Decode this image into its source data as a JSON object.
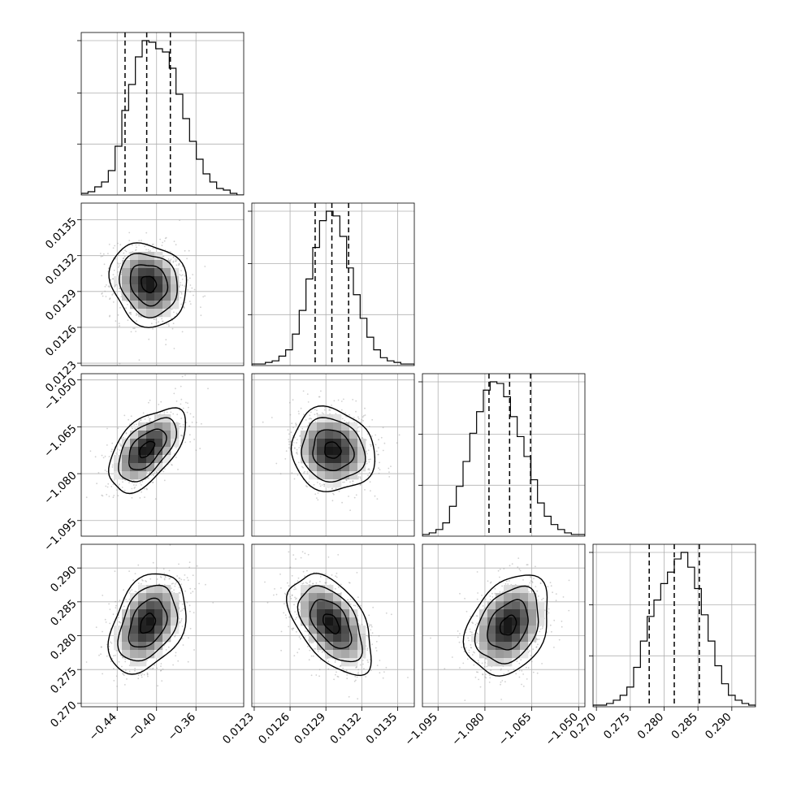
{
  "chart_data": {
    "type": "corner",
    "grid": true,
    "parameters": [
      {
        "ticks": [
          -0.44,
          -0.4,
          -0.36
        ],
        "tick_labels": [
          "−0.44",
          "−0.40",
          "−0.36"
        ],
        "range": [
          -0.4765,
          -0.3115
        ],
        "quantiles": [
          -0.432,
          -0.41,
          -0.386
        ],
        "hist": [
          1,
          2,
          5,
          8,
          15,
          30,
          52,
          68,
          85,
          95,
          94,
          90,
          88,
          78,
          62,
          47,
          33,
          22,
          13,
          8,
          4,
          3,
          1,
          0
        ]
      },
      {
        "ticks": [
          0.0123,
          0.0126,
          0.0129,
          0.0132,
          0.0135
        ],
        "tick_labels": [
          "0.0123",
          "0.0126",
          "0.0129",
          "0.0132",
          "0.0135"
        ],
        "range": [
          0.01228,
          0.01364
        ],
        "quantiles": [
          0.01281,
          0.01295,
          0.01309
        ],
        "hist": [
          1,
          1,
          2,
          3,
          6,
          10,
          20,
          35,
          55,
          75,
          92,
          98,
          95,
          82,
          62,
          45,
          30,
          18,
          10,
          5,
          3,
          2,
          1,
          1
        ]
      },
      {
        "ticks": [
          -1.095,
          -1.08,
          -1.065,
          -1.05
        ],
        "tick_labels": [
          "−1.095",
          "−1.080",
          "−1.065",
          "−1.050"
        ],
        "range": [
          -1.1,
          -1.048
        ],
        "quantiles": [
          -1.0787,
          -1.0721,
          -1.0654
        ],
        "hist": [
          1,
          2,
          4,
          8,
          18,
          30,
          45,
          62,
          75,
          88,
          93,
          92,
          84,
          72,
          60,
          48,
          34,
          20,
          12,
          7,
          4,
          2,
          1,
          1
        ]
      },
      {
        "ticks": [
          0.27,
          0.275,
          0.28,
          0.285,
          0.29
        ],
        "tick_labels": [
          "0.270",
          "0.275",
          "0.280",
          "0.285",
          "0.290"
        ],
        "range": [
          0.2695,
          0.2935
        ],
        "quantiles": [
          0.2778,
          0.2815,
          0.2852
        ],
        "hist": [
          1,
          1,
          2,
          4,
          7,
          12,
          24,
          40,
          55,
          65,
          75,
          82,
          90,
          94,
          85,
          72,
          56,
          40,
          25,
          14,
          7,
          4,
          2,
          1
        ]
      }
    ],
    "pairs": [
      {
        "row": 1,
        "col": 0,
        "mean": [
          -0.408,
          0.012962
        ],
        "sd": [
          0.019,
          0.00017
        ],
        "rho": -0.15
      },
      {
        "row": 2,
        "col": 0,
        "mean": [
          -0.41,
          -1.0722
        ],
        "sd": [
          0.019,
          0.0065
        ],
        "rho": 0.55
      },
      {
        "row": 2,
        "col": 1,
        "mean": [
          0.012955,
          -1.0725
        ],
        "sd": [
          0.00017,
          0.0065
        ],
        "rho": -0.1
      },
      {
        "row": 3,
        "col": 0,
        "mean": [
          -0.409,
          0.2818
        ],
        "sd": [
          0.019,
          0.0036
        ],
        "rho": 0.35
      },
      {
        "row": 3,
        "col": 1,
        "mean": [
          0.012945,
          0.2818
        ],
        "sd": [
          0.00017,
          0.0036
        ],
        "rho": -0.5
      },
      {
        "row": 3,
        "col": 2,
        "mean": [
          -1.0725,
          0.2815
        ],
        "sd": [
          0.0065,
          0.0036
        ],
        "rho": 0.3
      }
    ]
  }
}
